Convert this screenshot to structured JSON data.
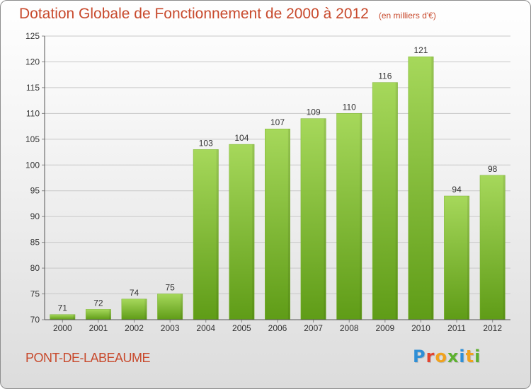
{
  "title": "Dotation Globale de Fonctionnement de 2000 à 2012",
  "unit_note": "(en milliers d'€)",
  "place": "PONT-DE-LABEAUME",
  "logo": {
    "text": "Proxiti",
    "letter_colors": [
      "#2f8fd6",
      "#e3442f",
      "#f1a21d",
      "#5db12f",
      "#2f8fd6",
      "#f1a21d",
      "#5db12f"
    ]
  },
  "colors": {
    "title": "#c84a2d",
    "bar_light": "#a6d85b",
    "bar_dark": "#5f9c17",
    "grid": "#c8c8c8",
    "axis_text": "#333333"
  },
  "chart_data": {
    "type": "bar",
    "title": "Dotation Globale de Fonctionnement de 2000 à 2012",
    "subtitle": "(en milliers d'€)",
    "categories": [
      "2000",
      "2001",
      "2002",
      "2003",
      "2004",
      "2005",
      "2006",
      "2007",
      "2008",
      "2009",
      "2010",
      "2011",
      "2012"
    ],
    "values": [
      71,
      72,
      74,
      75,
      103,
      104,
      107,
      109,
      110,
      116,
      121,
      94,
      98
    ],
    "ylim": [
      70,
      125
    ],
    "yticks": [
      70,
      75,
      80,
      85,
      90,
      95,
      100,
      105,
      110,
      115,
      120,
      125
    ],
    "xlabel": "",
    "ylabel": "",
    "grid": true,
    "data_labels": true,
    "legend": "none"
  }
}
